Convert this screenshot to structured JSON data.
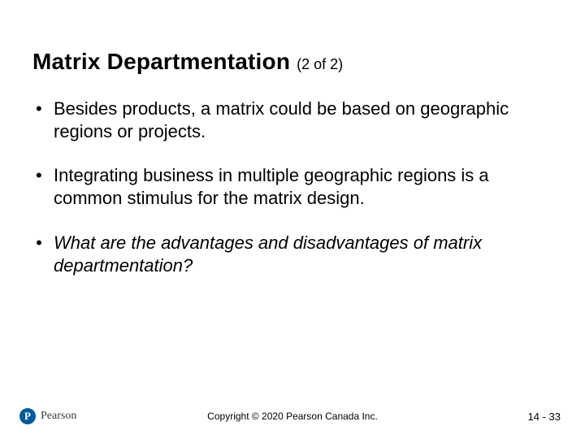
{
  "title": {
    "main": "Matrix Departmentation",
    "sub": "(2 of 2)",
    "main_fontsize": 28,
    "sub_fontsize": 18
  },
  "bullets": [
    {
      "text": "Besides products, a matrix could be based on geographic regions or projects.",
      "italic": false
    },
    {
      "text": "Integrating business in multiple geographic regions is a common stimulus for the matrix design.",
      "italic": false
    },
    {
      "text": "What are the advantages and disadvantages of matrix departmentation?",
      "italic": true
    }
  ],
  "bullet_fontsize": 22,
  "footer": {
    "brand_initial": "P",
    "brand_name": "Pearson",
    "copyright": "Copyright © 2020 Pearson Canada Inc.",
    "page_number": "14 - 33"
  },
  "colors": {
    "background": "#ffffff",
    "text": "#000000",
    "brand_badge_bg": "#005a9c",
    "brand_badge_fg": "#ffffff",
    "brand_text": "#3a3a3a"
  }
}
